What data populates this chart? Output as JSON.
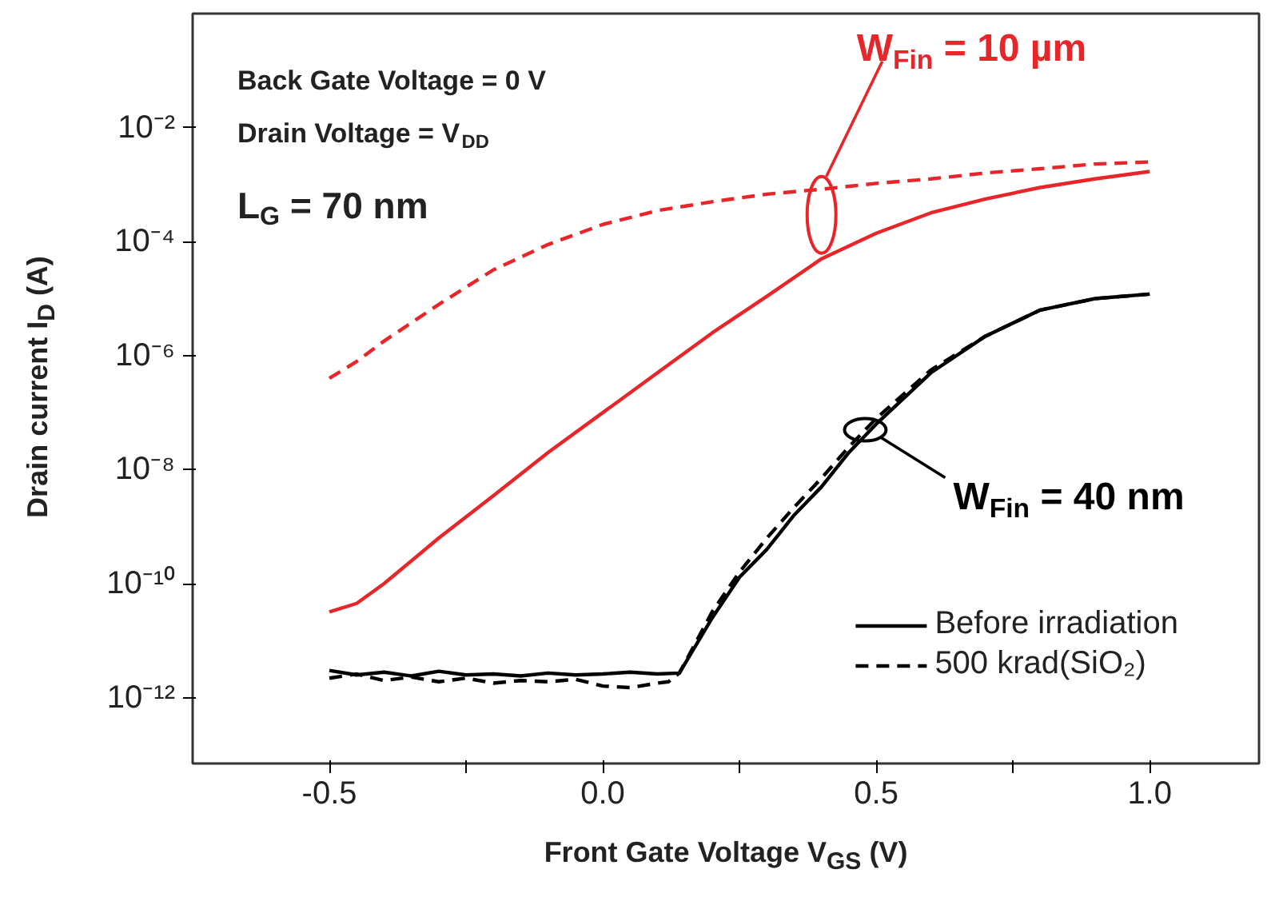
{
  "chart_data": {
    "type": "line",
    "xlabel": "Front Gate Voltage V$_{GS}$ (V)",
    "ylabel": "Drain current I$_{D}$ (A)",
    "log": "y",
    "grid": false,
    "legend": "bottom right",
    "marker": "none",
    "xlim": [
      -0.75,
      1.2
    ],
    "ylim": [
      7e-14,
      1
    ],
    "xticks": [
      {
        "value": -0.5,
        "label": "-0.5"
      },
      {
        "value": -0.25,
        "label": null
      },
      {
        "value": 0,
        "label": "0.0"
      },
      {
        "value": 0.25,
        "label": null
      },
      {
        "value": 0.5,
        "label": "0.5"
      },
      {
        "value": 0.75,
        "label": null
      },
      {
        "value": 1,
        "label": "1.0"
      }
    ],
    "yticks": [
      {
        "value": 1e-12,
        "label": "10⁻¹²"
      },
      {
        "value": 1e-10,
        "label": "10⁻¹⁰"
      },
      {
        "value": 1e-08,
        "label": "10⁻⁸"
      },
      {
        "value": 1e-06,
        "label": "10⁻⁶"
      },
      {
        "value": 0.0001,
        "label": "10⁻⁴"
      },
      {
        "value": 0.01,
        "label": "10⁻²"
      }
    ],
    "series": [
      {
        "color": "#e8262a",
        "line_style": "solid",
        "x": [
          -0.5,
          -0.45,
          -0.4,
          -0.3,
          -0.2,
          -0.1,
          0,
          0.1,
          0.2,
          0.3,
          0.4,
          0.5,
          0.6,
          0.7,
          0.8,
          0.9,
          1.0
        ],
        "values": [
          3.2e-11,
          4.5e-11,
          1e-10,
          6.3e-10,
          3.5e-09,
          2e-08,
          1e-07,
          5e-07,
          2.5e-06,
          1.1e-05,
          5e-05,
          0.00014,
          0.00032,
          0.00056,
          0.00089,
          0.00126,
          0.0017
        ]
      },
      {
        "color": "#e8262a",
        "line_style": "dashed",
        "x": [
          -0.5,
          -0.45,
          -0.4,
          -0.3,
          -0.2,
          -0.1,
          0,
          0.1,
          0.2,
          0.3,
          0.4,
          0.5,
          0.6,
          0.7,
          0.8,
          0.9,
          1.0
        ],
        "values": [
          4e-07,
          7.9e-07,
          1.8e-06,
          7.9e-06,
          3.2e-05,
          8.9e-05,
          0.0002,
          0.00035,
          0.0005,
          0.00068,
          0.00083,
          0.00105,
          0.00126,
          0.0016,
          0.0019,
          0.0023,
          0.0025
        ]
      },
      {
        "name": "Before irradiation",
        "color": "#000000",
        "line_style": "solid",
        "x": [
          -0.5,
          -0.45,
          -0.4,
          -0.35,
          -0.3,
          -0.25,
          -0.2,
          -0.15,
          -0.1,
          -0.05,
          0,
          0.05,
          0.1,
          0.14,
          0.2,
          0.25,
          0.3,
          0.35,
          0.4,
          0.45,
          0.5,
          0.6,
          0.7,
          0.8,
          0.9,
          1.0
        ],
        "values": [
          3e-12,
          2.5e-12,
          2.8e-12,
          2.4e-12,
          2.9e-12,
          2.5e-12,
          2.6e-12,
          2.4e-12,
          2.7e-12,
          2.5e-12,
          2.6e-12,
          2.8e-12,
          2.6e-12,
          2.7e-12,
          2.5e-11,
          1.3e-10,
          4e-10,
          1.6e-09,
          5e-09,
          2e-08,
          6.3e-08,
          5e-07,
          2.2e-06,
          6.3e-06,
          1e-05,
          1.2e-05
        ]
      },
      {
        "name": "500 krad(SiO₂)",
        "color": "#000000",
        "line_style": "dashed",
        "x": [
          -0.5,
          -0.45,
          -0.4,
          -0.35,
          -0.3,
          -0.25,
          -0.2,
          -0.15,
          -0.1,
          -0.05,
          0,
          0.05,
          0.1,
          0.12,
          0.14,
          0.2,
          0.25,
          0.3,
          0.35,
          0.4,
          0.45,
          0.5,
          0.6,
          0.7,
          0.8,
          0.9,
          1.0
        ],
        "values": [
          2.2e-12,
          2.6e-12,
          2e-12,
          2.3e-12,
          1.9e-12,
          2.2e-12,
          1.8e-12,
          2e-12,
          1.9e-12,
          2.1e-12,
          1.6e-12,
          1.5e-12,
          1.8e-12,
          1.9e-12,
          2.7e-12,
          3.2e-11,
          1.6e-10,
          6.3e-10,
          2.2e-09,
          7.1e-09,
          2.5e-08,
          7.9e-08,
          5.6e-07,
          2.2e-06,
          6.3e-06,
          1e-05,
          1.2e-05
        ]
      }
    ],
    "annotations": [
      "Back Gate Voltage = 0 V",
      "Drain Voltage = V$_{DD}$",
      "L$_{G}$ = 70 nm",
      {
        "text": "W$_{Fin}$ = 10 µm",
        "x": 0.4,
        "y": 0.00083
      },
      {
        "text": "W$_{Fin}$ = 40 nm",
        "x": 0.48,
        "y": 5e-08
      }
    ]
  }
}
